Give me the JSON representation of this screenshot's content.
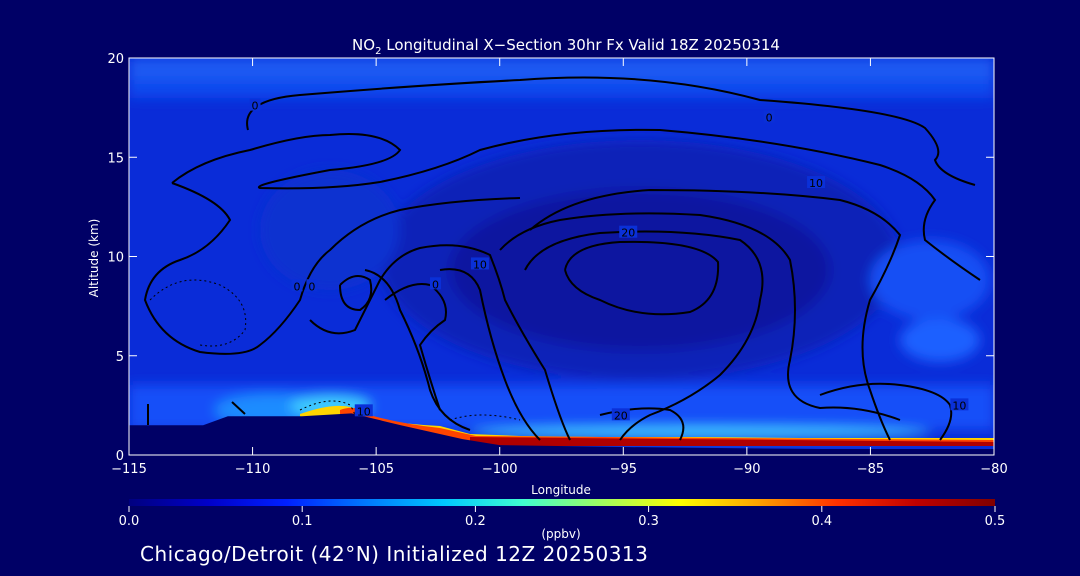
{
  "chart_data": {
    "type": "heatmap",
    "title": {
      "prefix": "NO",
      "subscript": "2",
      "suffix": " Longitudinal X−Section 30hr  Fx Valid 18Z 20250314"
    },
    "xlabel": "Longitude",
    "ylabel": "Altitude (km)",
    "xlim": [
      -115,
      -80
    ],
    "ylim": [
      0,
      20
    ],
    "x_ticks": [
      -115,
      -110,
      -105,
      -100,
      -95,
      -90,
      -85,
      -80
    ],
    "x_tick_labels": [
      "−115",
      "−110",
      "−105",
      "−100",
      "−95",
      "−90",
      "−85",
      "−80"
    ],
    "y_ticks": [
      0,
      5,
      10,
      15,
      20
    ],
    "y_tick_labels": [
      "0",
      "5",
      "10",
      "15",
      "20"
    ],
    "colorbar": {
      "label": "(ppbv)",
      "min": 0.0,
      "max": 0.5,
      "ticks": [
        0.0,
        0.1,
        0.2,
        0.3,
        0.4,
        0.5
      ],
      "tick_labels": [
        "0.0",
        "0.1",
        "0.2",
        "0.3",
        "0.4",
        "0.5"
      ],
      "colors": [
        "#000080",
        "#0000c8",
        "#0020ff",
        "#0078ff",
        "#00c8ff",
        "#40ffd0",
        "#a0ff60",
        "#ffff00",
        "#ffa000",
        "#ff3000",
        "#c00000",
        "#800000"
      ]
    },
    "contour_labels": [
      {
        "text": "0",
        "x": -109.9,
        "y": 17.6
      },
      {
        "text": "0",
        "x": -89.1,
        "y": 17.0
      },
      {
        "text": "10",
        "x": -87.2,
        "y": 13.7
      },
      {
        "text": "20",
        "x": -94.8,
        "y": 11.2
      },
      {
        "text": "10",
        "x": -100.8,
        "y": 9.6
      },
      {
        "text": "0",
        "x": -102.6,
        "y": 8.6
      },
      {
        "text": "0",
        "x": -107.6,
        "y": 8.5
      },
      {
        "text": "0",
        "x": -108.2,
        "y": 8.5
      },
      {
        "text": "10",
        "x": -105.5,
        "y": 2.2
      },
      {
        "text": "20",
        "x": -95.1,
        "y": 2.0
      },
      {
        "text": "10",
        "x": -81.4,
        "y": 2.5
      }
    ],
    "terrain_km": [
      {
        "lon": -115,
        "alt": 1.5
      },
      {
        "lon": -112,
        "alt": 1.5
      },
      {
        "lon": -111,
        "alt": 1.95
      },
      {
        "lon": -108,
        "alt": 1.95
      },
      {
        "lon": -106,
        "alt": 2.1
      },
      {
        "lon": -104,
        "alt": 1.5
      },
      {
        "lon": -101.5,
        "alt": 0.8
      },
      {
        "lon": -100,
        "alt": 0.5
      },
      {
        "lon": -95,
        "alt": 0.4
      },
      {
        "lon": -87,
        "alt": 0.3
      },
      {
        "lon": -80,
        "alt": 0.3
      }
    ]
  },
  "footer": "Chicago/Detroit (42°N) Initialized 12Z 20250313"
}
